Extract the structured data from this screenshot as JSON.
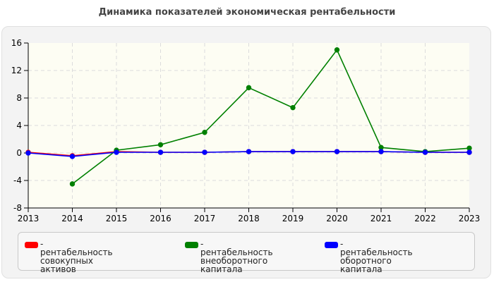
{
  "chart_data": {
    "type": "line",
    "title": "Динамика показателей экономическая рентабельности",
    "xlabel": "",
    "ylabel": "",
    "categories": [
      "2013",
      "2014",
      "2015",
      "2016",
      "2017",
      "2018",
      "2019",
      "2020",
      "2021",
      "2022",
      "2023"
    ],
    "ylim": [
      -8,
      16
    ],
    "yticks": [
      "-8",
      "-4",
      "0",
      "4",
      "8",
      "12",
      "16"
    ],
    "grid": true,
    "legend_position": "bottom",
    "series": [
      {
        "name": "рентабельность совокупных активов",
        "legend_lines": [
          "- рентабельность совокупных",
          "активов"
        ],
        "color": "#ff0000",
        "values": [
          0.1,
          -0.4,
          0.2,
          0.1,
          0.1,
          0.2,
          0.2,
          0.2,
          0.2,
          0.1,
          0.1
        ]
      },
      {
        "name": "рентабельность внеоборотного капитала",
        "legend_lines": [
          "- рентабельность",
          "внеоборотного капитала"
        ],
        "color": "#008000",
        "values": [
          null,
          -4.5,
          0.4,
          1.2,
          3.0,
          9.5,
          6.6,
          15.0,
          0.8,
          0.2,
          0.7
        ]
      },
      {
        "name": "рентабельность оборотного капитала",
        "legend_lines": [
          "- рентабельность оборотного",
          "капитала"
        ],
        "color": "#0000ff",
        "values": [
          0.0,
          -0.5,
          0.1,
          0.1,
          0.1,
          0.2,
          0.2,
          0.2,
          0.2,
          0.1,
          0.1
        ]
      }
    ]
  }
}
